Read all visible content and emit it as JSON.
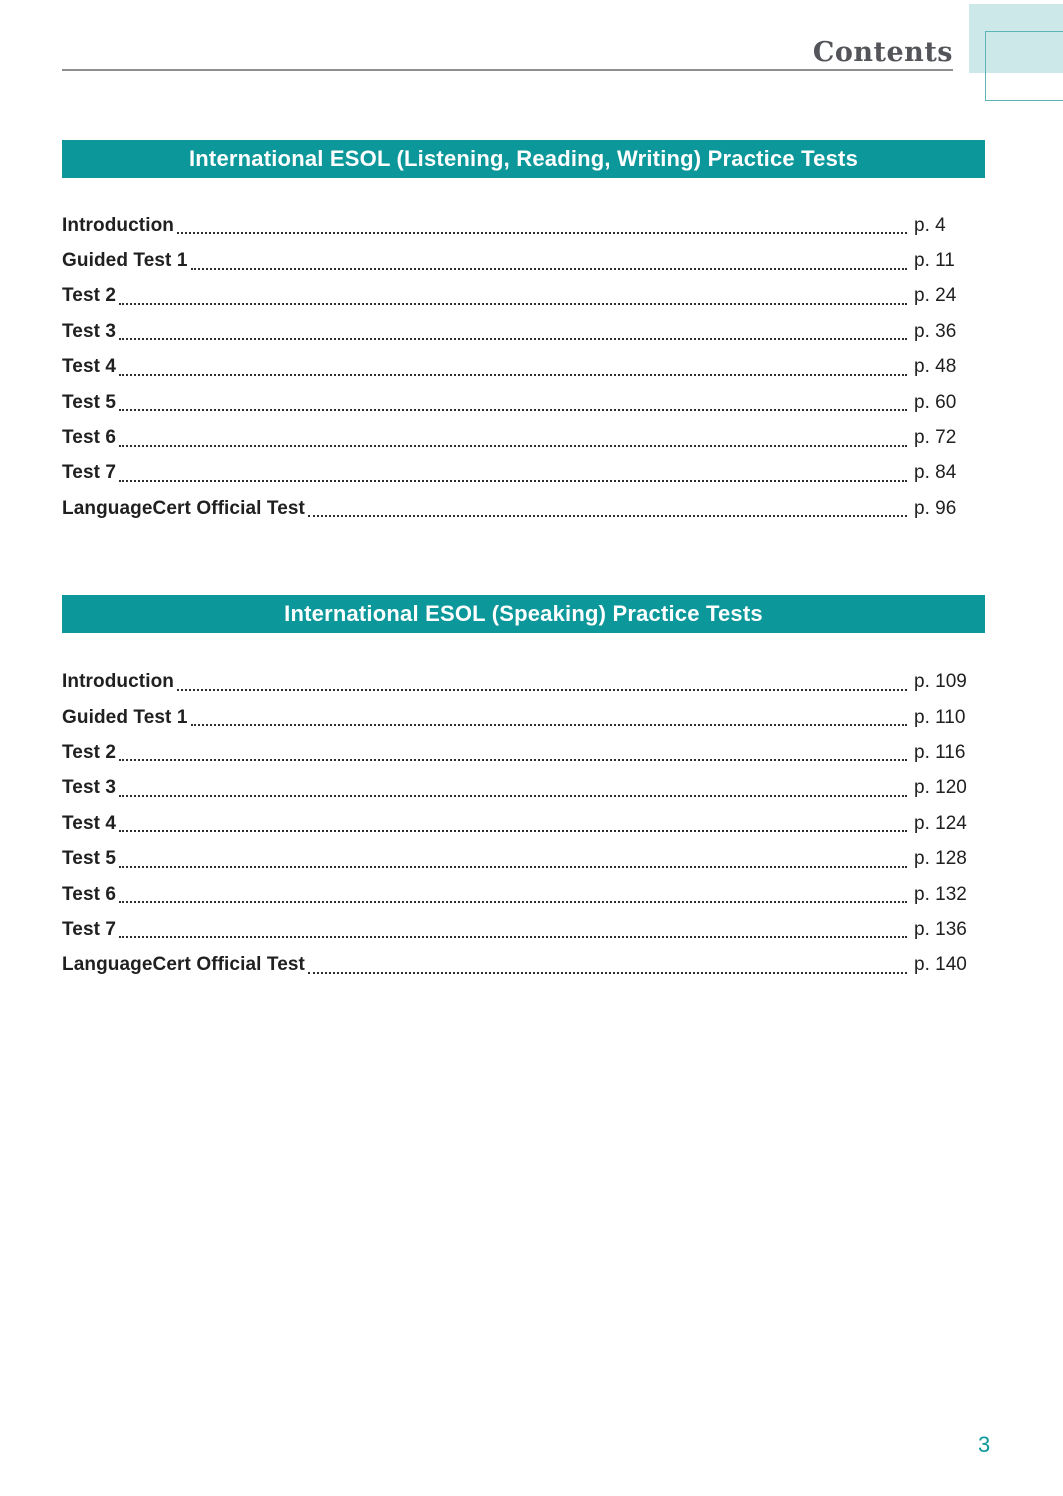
{
  "header": {
    "title": "Contents"
  },
  "footer": {
    "page_number": "3"
  },
  "colors": {
    "banner_teal": "#0c989a",
    "corner_fill_teal": "#cde8e8",
    "corner_outline_teal": "#5eb5b7",
    "header_text_gray": "#54555a",
    "rule_gray": "#8e8e8e",
    "body_text": "#202020"
  },
  "sections": [
    {
      "title": "International ESOL (Listening, Reading, Writing) Practice Tests",
      "entries": [
        {
          "label": "Introduction",
          "page": "p. 4"
        },
        {
          "label": "Guided Test 1",
          "page": "p. 11"
        },
        {
          "label": "Test 2",
          "page": "p. 24"
        },
        {
          "label": "Test 3",
          "page": "p. 36"
        },
        {
          "label": "Test 4",
          "page": "p. 48"
        },
        {
          "label": "Test 5",
          "page": "p. 60"
        },
        {
          "label": "Test 6",
          "page": "p. 72"
        },
        {
          "label": "Test 7",
          "page": "p. 84"
        },
        {
          "label": "LanguageCert Official Test",
          "page": "p. 96"
        }
      ]
    },
    {
      "title": "International ESOL (Speaking) Practice Tests",
      "entries": [
        {
          "label": "Introduction",
          "page": "p. 109"
        },
        {
          "label": "Guided Test 1",
          "page": "p. 110"
        },
        {
          "label": "Test 2",
          "page": "p. 116"
        },
        {
          "label": "Test 3",
          "page": "p. 120"
        },
        {
          "label": "Test 4",
          "page": "p. 124"
        },
        {
          "label": "Test 5",
          "page": "p. 128"
        },
        {
          "label": "Test 6",
          "page": "p. 132"
        },
        {
          "label": "Test 7",
          "page": "p. 136"
        },
        {
          "label": "LanguageCert Official Test",
          "page": "p. 140"
        }
      ]
    }
  ]
}
